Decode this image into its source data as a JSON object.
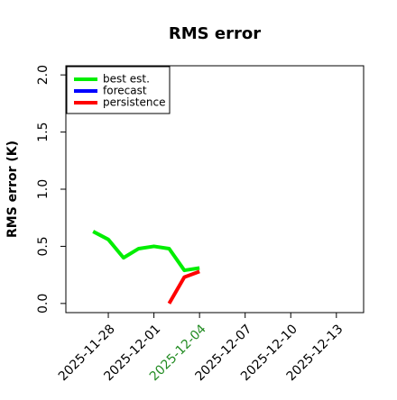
{
  "chart_data": {
    "type": "line",
    "title": "RMS error",
    "y_label": "RMS error (K)",
    "x": [
      "2025-11-27",
      "2025-11-28",
      "2025-11-29",
      "2025-11-30",
      "2025-12-01",
      "2025-12-02",
      "2025-12-03",
      "2025-12-04"
    ],
    "series": [
      {
        "name": "best est.",
        "color": "#00ee00",
        "values": [
          0.63,
          0.56,
          0.4,
          0.48,
          0.5,
          0.48,
          0.29,
          0.31
        ]
      },
      {
        "name": "forecast",
        "color": "#0000ff",
        "values": [
          null,
          null,
          null,
          null,
          null,
          null,
          null,
          null
        ]
      },
      {
        "name": "persistence",
        "color": "#ff0000",
        "values": [
          null,
          null,
          null,
          null,
          null,
          0.0,
          0.23,
          0.28
        ]
      }
    ],
    "xlim": [
      "2025-11-25T05:00Z",
      "2025-12-14T19:00Z"
    ],
    "xticks": [
      "2025-11-28",
      "2025-12-01",
      "2025-12-04",
      "2025-12-07",
      "2025-12-10",
      "2025-12-13"
    ],
    "xtick_colors": [
      "#000000",
      "#000000",
      "#228b22",
      "#000000",
      "#000000",
      "#000000"
    ],
    "ylim": [
      -0.08,
      2.08
    ],
    "yticks": [
      {
        "value": 0,
        "label": "0.0"
      },
      0.5,
      {
        "value": 1,
        "label": "1.0"
      },
      1.5,
      {
        "value": 2,
        "label": "2.0"
      }
    ],
    "legend": "upper left"
  }
}
